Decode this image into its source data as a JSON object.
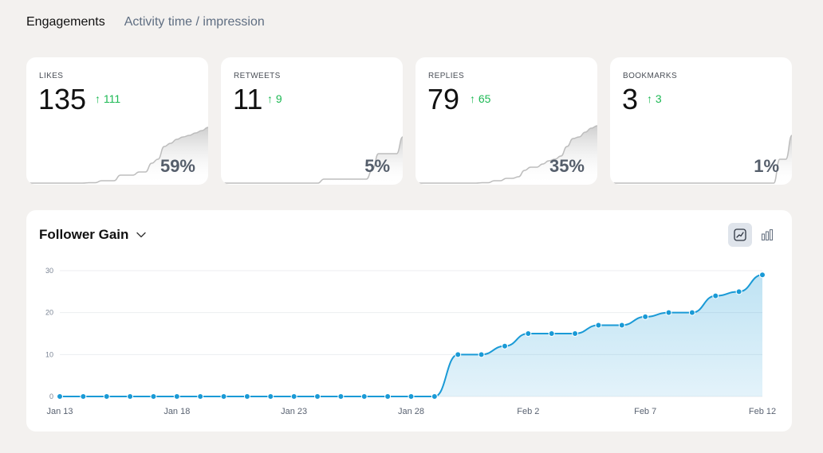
{
  "tabs": [
    "Engagements",
    "Activity time / impression"
  ],
  "cards": [
    {
      "label": "LIKES",
      "value": "135",
      "delta": "111",
      "pct": "59%",
      "spark": [
        0,
        0,
        0,
        0,
        0,
        0,
        0,
        0,
        0,
        0,
        0.5,
        0.5,
        3,
        3,
        3,
        10,
        10,
        10,
        14,
        14,
        25,
        30,
        46,
        50,
        55,
        58,
        60,
        63,
        66,
        70
      ]
    },
    {
      "label": "RETWEETS",
      "value": "11",
      "delta": "9",
      "pct": "5%",
      "spark": [
        0,
        0,
        0,
        0,
        0,
        0,
        0,
        0,
        0,
        0,
        0,
        0,
        0,
        0,
        0,
        0,
        0,
        5,
        5,
        5,
        5,
        5,
        5,
        5,
        5,
        17,
        37,
        37,
        37,
        37,
        58
      ]
    },
    {
      "label": "REPLIES",
      "value": "79",
      "delta": "65",
      "pct": "35%",
      "spark": [
        0,
        0,
        0,
        0,
        0,
        0,
        0,
        0,
        0,
        0,
        0,
        0.5,
        0.5,
        3,
        3,
        6,
        6,
        8,
        16,
        20,
        20,
        24,
        28,
        30,
        34,
        46,
        56,
        58,
        64,
        69,
        72
      ]
    },
    {
      "label": "BOOKMARKS",
      "value": "3",
      "delta": "3",
      "pct": "1%",
      "spark": [
        0,
        0,
        0,
        0,
        0,
        0,
        0,
        0,
        0,
        0,
        0,
        0,
        0,
        0,
        0,
        0,
        0,
        0,
        0,
        0,
        0,
        0,
        0,
        0,
        0,
        0,
        0,
        0,
        30,
        30,
        60
      ]
    }
  ],
  "panel": {
    "title": "Follower Gain"
  },
  "chart_data": {
    "type": "area",
    "title": "Follower Gain",
    "x": [
      "Jan 13",
      "Jan 14",
      "Jan 15",
      "Jan 16",
      "Jan 17",
      "Jan 18",
      "Jan 19",
      "Jan 20",
      "Jan 21",
      "Jan 22",
      "Jan 23",
      "Jan 24",
      "Jan 25",
      "Jan 26",
      "Jan 27",
      "Jan 28",
      "Jan 29",
      "Jan 30",
      "Jan 31",
      "Feb 1",
      "Feb 2",
      "Feb 3",
      "Feb 4",
      "Feb 5",
      "Feb 6",
      "Feb 7",
      "Feb 8",
      "Feb 9",
      "Feb 10",
      "Feb 11",
      "Feb 12"
    ],
    "values": [
      0,
      0,
      0,
      0,
      0,
      0,
      0,
      0,
      0,
      0,
      0,
      0,
      0,
      0,
      0,
      0,
      0,
      10,
      10,
      12,
      15,
      15,
      15,
      17,
      17,
      19,
      20,
      20,
      24,
      25,
      29
    ],
    "xtick_labels": [
      "Jan 13",
      "Jan 18",
      "Jan 23",
      "Jan 28",
      "Feb 2",
      "Feb 7",
      "Feb 12"
    ],
    "yticks": [
      0,
      10,
      20,
      30
    ],
    "ylim": [
      0,
      30
    ],
    "color": "#1a9ad6"
  },
  "colors": {
    "accent": "#1a9ad6",
    "positive": "#1db954"
  }
}
